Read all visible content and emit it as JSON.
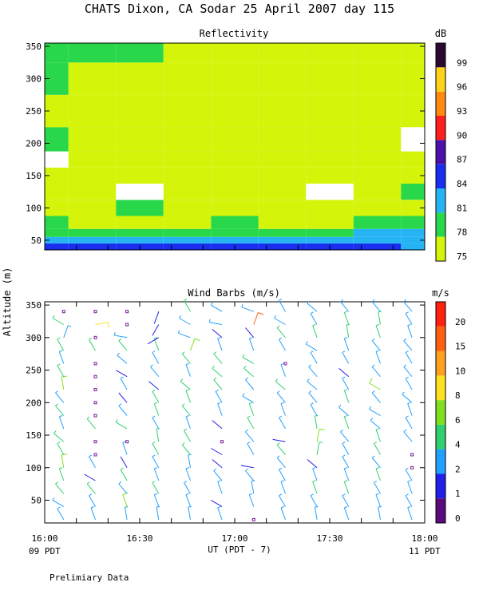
{
  "title": "CHATS Dixon, CA  Sodar  25 April 2007  day 115",
  "ylabel": "Altitude (m)",
  "xlabel": "UT  (PDT - 7)",
  "x_ticks": [
    "16:00",
    "16:30",
    "17:00",
    "17:30",
    "18:00"
  ],
  "x_left_local": "09 PDT",
  "x_right_local": "11 PDT",
  "footer": "Prelimiary Data",
  "chart_data": [
    {
      "type": "heatmap",
      "title": "Reflectivity",
      "colorbar_label": "dB",
      "colorbar_ticks": [
        "75",
        "78",
        "81",
        "84",
        "87",
        "90",
        "93",
        "96",
        "99"
      ],
      "colors": {
        "75": "#d4f40a",
        "78": "#29d84a",
        "81": "#26b3f4",
        "84": "#1a2ef0",
        "87": "#4a10a8",
        "90": "#ff1f1f",
        "93": "#ff8a10",
        "96": "#ffd21a",
        "99": "#2a0a30"
      },
      "x_range": [
        "16:00",
        "18:00"
      ],
      "y_range": [
        35,
        355
      ],
      "y_ticks": [
        50,
        100,
        150,
        200,
        250,
        300,
        350
      ],
      "grid": false,
      "altitude_m": [
        40,
        50,
        60,
        75,
        100,
        125,
        150,
        175,
        200,
        250,
        300,
        350
      ],
      "time_profile_labels": [
        "16:00",
        "16:15",
        "16:30",
        "16:45",
        "17:00",
        "17:15",
        "17:30",
        "17:45",
        "18:00"
      ],
      "approx_profile_db": {
        "16:00": [
          84,
          81,
          78,
          78,
          75,
          75,
          75,
          76,
          78,
          75,
          78,
          78
        ],
        "16:15": [
          84,
          81,
          78,
          75,
          75,
          75,
          75,
          75,
          75,
          75,
          75,
          78
        ],
        "16:30": [
          84,
          81,
          78,
          75,
          78,
          76,
          75,
          75,
          75,
          75,
          75,
          78
        ],
        "16:45": [
          84,
          81,
          78,
          75,
          75,
          75,
          75,
          75,
          75,
          75,
          75,
          75
        ],
        "17:00": [
          84,
          81,
          78,
          78,
          75,
          75,
          75,
          75,
          75,
          75,
          75,
          75
        ],
        "17:15": [
          84,
          81,
          78,
          75,
          75,
          75,
          75,
          75,
          75,
          75,
          75,
          75
        ],
        "17:30": [
          84,
          81,
          78,
          75,
          75,
          77,
          75,
          75,
          75,
          75,
          75,
          75
        ],
        "17:45": [
          84,
          81,
          81,
          78,
          75,
          75,
          75,
          75,
          75,
          75,
          75,
          75
        ],
        "18:00": [
          81,
          81,
          81,
          78,
          75,
          78,
          75,
          75,
          76,
          75,
          75,
          75
        ]
      }
    },
    {
      "type": "scatter",
      "title": "Wind Barbs (m/s)",
      "colorbar_label": "m/s",
      "colorbar_ticks": [
        "0",
        "1",
        "2",
        "4",
        "6",
        "8",
        "10",
        "15",
        "20"
      ],
      "colors": {
        "0": "#5a0a7a",
        "1": "#2020e8",
        "2": "#20a0ff",
        "4": "#30d070",
        "6": "#80e020",
        "8": "#ffe020",
        "10": "#ffa020",
        "15": "#ff6010",
        "20": "#ff2010"
      },
      "x_range": [
        "16:00",
        "18:00"
      ],
      "y_range": [
        15,
        355
      ],
      "y_ticks": [
        50,
        100,
        150,
        200,
        250,
        300,
        350
      ],
      "grid": false,
      "altitudes_m": [
        20,
        40,
        60,
        80,
        100,
        120,
        140,
        160,
        180,
        200,
        220,
        240,
        260,
        280,
        300,
        320,
        340
      ],
      "time_columns": [
        "16:06",
        "16:16",
        "16:26",
        "16:36",
        "16:46",
        "16:56",
        "17:06",
        "17:16",
        "17:26",
        "17:36",
        "17:46",
        "17:56"
      ],
      "calm_markers_note": "small squares mark calm / very light winds",
      "speeds_ms": [
        [
          2,
          2,
          4,
          4,
          6,
          4,
          4,
          2,
          4,
          2,
          6,
          4,
          2,
          4,
          2,
          4,
          0
        ],
        [
          2,
          2,
          4,
          1,
          2,
          0,
          0,
          4,
          0,
          0,
          0,
          0,
          0,
          4,
          0,
          8,
          0
        ],
        [
          2,
          6,
          2,
          4,
          1,
          2,
          0,
          4,
          2,
          1,
          2,
          1,
          2,
          4,
          2,
          0,
          0
        ],
        [
          2,
          2,
          4,
          2,
          2,
          4,
          4,
          2,
          4,
          4,
          1,
          2,
          2,
          4,
          1,
          1,
          1
        ],
        [
          2,
          2,
          2,
          2,
          2,
          4,
          4,
          2,
          4,
          4,
          4,
          2,
          4,
          6,
          2,
          2,
          4
        ],
        [
          2,
          1,
          2,
          2,
          1,
          1,
          0,
          1,
          2,
          2,
          4,
          4,
          4,
          2,
          1,
          2,
          2
        ],
        [
          0,
          2,
          2,
          2,
          1,
          2,
          2,
          4,
          4,
          2,
          2,
          4,
          4,
          2,
          1,
          15,
          2
        ],
        [
          2,
          2,
          2,
          2,
          2,
          4,
          1,
          2,
          2,
          2,
          4,
          2,
          0,
          2,
          4,
          2,
          2
        ],
        [
          2,
          2,
          4,
          2,
          1,
          4,
          6,
          4,
          2,
          2,
          2,
          2,
          2,
          2,
          4,
          2,
          2
        ],
        [
          2,
          2,
          4,
          2,
          2,
          2,
          2,
          4,
          2,
          4,
          2,
          1,
          2,
          2,
          4,
          4,
          2
        ],
        [
          2,
          2,
          2,
          4,
          2,
          4,
          4,
          2,
          2,
          2,
          6,
          2,
          2,
          2,
          4,
          4,
          2
        ],
        [
          2,
          2,
          2,
          2,
          0,
          0,
          2,
          2,
          2,
          2,
          2,
          2,
          2,
          2,
          2,
          2,
          2
        ]
      ],
      "directions_deg": [
        [
          330,
          300,
          320,
          340,
          350,
          330,
          310,
          340,
          320,
          320,
          350,
          330,
          340,
          330,
          20,
          300,
          0
        ],
        [
          340,
          330,
          320,
          300,
          330,
          0,
          0,
          320,
          0,
          0,
          0,
          0,
          0,
          330,
          0,
          80,
          0
        ],
        [
          350,
          340,
          320,
          330,
          330,
          340,
          0,
          300,
          320,
          320,
          330,
          300,
          310,
          320,
          280,
          0,
          0
        ],
        [
          350,
          340,
          330,
          340,
          330,
          330,
          350,
          330,
          340,
          330,
          310,
          320,
          330,
          340,
          240,
          210,
          200
        ],
        [
          350,
          340,
          330,
          340,
          350,
          320,
          330,
          340,
          320,
          340,
          310,
          340,
          320,
          20,
          290,
          300,
          330
        ],
        [
          340,
          300,
          340,
          320,
          310,
          300,
          0,
          310,
          340,
          330,
          320,
          310,
          320,
          340,
          310,
          280,
          300
        ],
        [
          0,
          340,
          350,
          320,
          280,
          330,
          320,
          330,
          340,
          300,
          320,
          310,
          300,
          340,
          320,
          20,
          290
        ],
        [
          340,
          330,
          340,
          330,
          320,
          320,
          280,
          330,
          340,
          320,
          310,
          340,
          0,
          330,
          320,
          300,
          330
        ],
        [
          350,
          330,
          340,
          340,
          310,
          10,
          10,
          350,
          330,
          320,
          310,
          320,
          330,
          300,
          340,
          330,
          310
        ],
        [
          340,
          330,
          340,
          340,
          330,
          330,
          320,
          340,
          310,
          340,
          330,
          310,
          330,
          340,
          350,
          340,
          320
        ],
        [
          350,
          340,
          330,
          340,
          320,
          330,
          340,
          310,
          300,
          320,
          300,
          320,
          340,
          320,
          340,
          350,
          320
        ],
        [
          340,
          330,
          340,
          330,
          0,
          0,
          320,
          330,
          340,
          310,
          330,
          320,
          330,
          320,
          340,
          330,
          320
        ]
      ]
    }
  ]
}
